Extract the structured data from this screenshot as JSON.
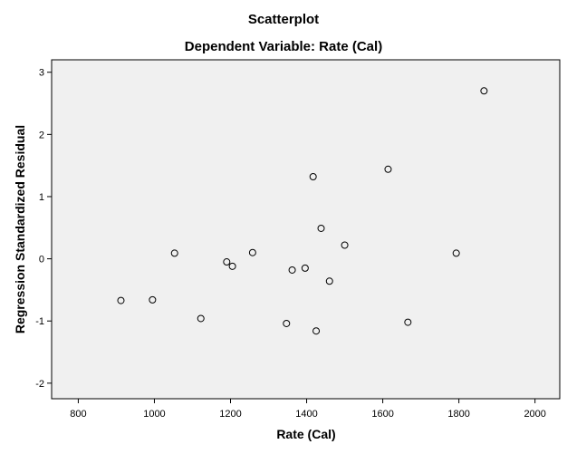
{
  "chart_data": {
    "type": "scatter",
    "title": "Scatterplot",
    "subtitle": "Dependent Variable: Rate (Cal)",
    "xlabel": "Rate (Cal)",
    "ylabel": "Regression Standardized Residual",
    "xlim": [
      730,
      2065
    ],
    "ylim": [
      -2.25,
      3.2
    ],
    "xticks": [
      800,
      1000,
      1200,
      1400,
      1600,
      1800,
      2000
    ],
    "yticks": [
      -2,
      -1,
      0,
      1,
      2,
      3
    ],
    "grid": false,
    "background_color": "#f0f0f0",
    "marker": "open-circle",
    "points": [
      {
        "x": 912,
        "y": -0.67
      },
      {
        "x": 995,
        "y": -0.66
      },
      {
        "x": 1053,
        "y": 0.09
      },
      {
        "x": 1122,
        "y": -0.96
      },
      {
        "x": 1190,
        "y": -0.05
      },
      {
        "x": 1205,
        "y": -0.12
      },
      {
        "x": 1258,
        "y": 0.1
      },
      {
        "x": 1347,
        "y": -1.04
      },
      {
        "x": 1362,
        "y": -0.18
      },
      {
        "x": 1396,
        "y": -0.15
      },
      {
        "x": 1417,
        "y": 1.32
      },
      {
        "x": 1425,
        "y": -1.16
      },
      {
        "x": 1438,
        "y": 0.49
      },
      {
        "x": 1460,
        "y": -0.36
      },
      {
        "x": 1500,
        "y": 0.22
      },
      {
        "x": 1614,
        "y": 1.44
      },
      {
        "x": 1666,
        "y": -1.02
      },
      {
        "x": 1793,
        "y": 0.09
      },
      {
        "x": 1866,
        "y": 2.7
      }
    ]
  }
}
